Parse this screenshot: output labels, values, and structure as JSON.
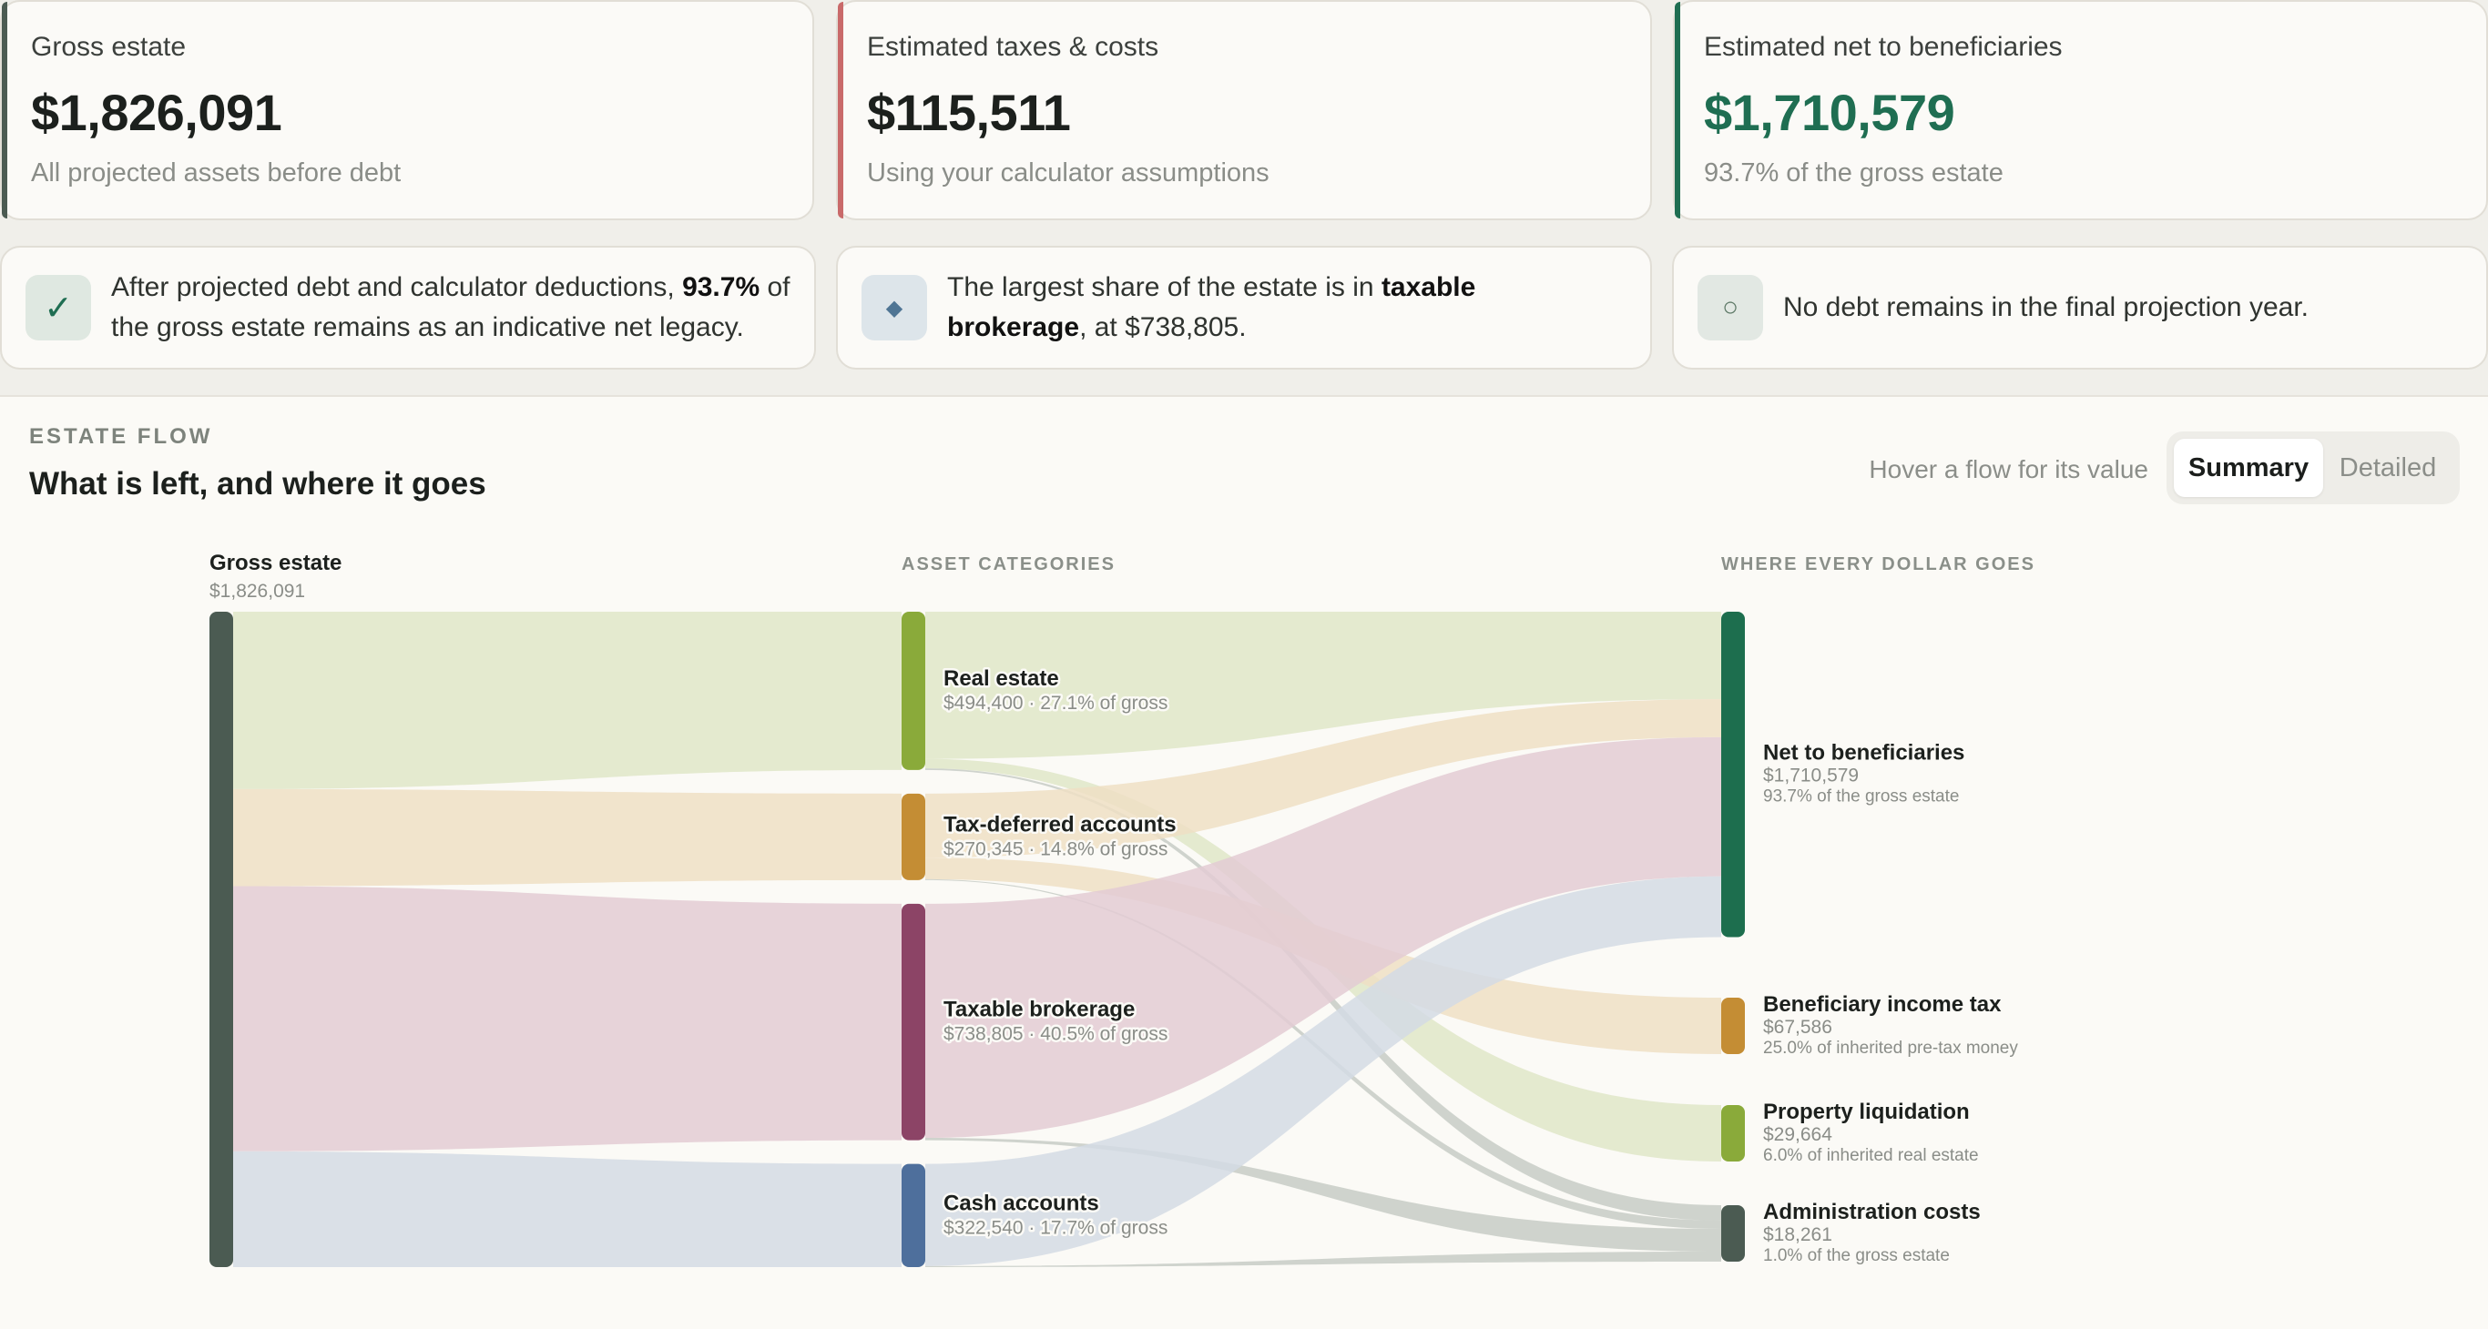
{
  "stats": [
    {
      "label": "Gross estate",
      "value": "$1,826,091",
      "sub": "All projected assets before debt",
      "accent": "#4b5b52"
    },
    {
      "label": "Estimated taxes & costs",
      "value": "$115,511",
      "sub": "Using your calculator assumptions",
      "accent": "#c96a6a"
    },
    {
      "label": "Estimated net to beneficiaries",
      "value": "$1,710,579",
      "sub": "93.7% of the gross estate",
      "accent": "#1f6e52"
    }
  ],
  "insights": [
    {
      "icon": "✓",
      "pre": "After projected debt and calculator deductions, ",
      "bold": "93.7%",
      "post": " of the gross estate remains as an indicative net legacy."
    },
    {
      "icon": "◆",
      "pre": "The largest share of the estate is in ",
      "bold": "taxable brokerage",
      "post": ", at $738,805."
    },
    {
      "icon": "○",
      "pre": "No debt remains in the final projection year.",
      "bold": "",
      "post": ""
    }
  ],
  "panel": {
    "eyebrow": "ESTATE FLOW",
    "title": "What is left, and where it goes",
    "hint": "Hover a flow for its value",
    "toggle": {
      "active": "Summary",
      "inactive": "Detailed"
    }
  },
  "flow": {
    "source": {
      "name": "Gross estate",
      "value": 1826091,
      "value_label": "$1,826,091",
      "color": "#4b5b52"
    },
    "headers": {
      "categories": "ASSET CATEGORIES",
      "destinations": "WHERE EVERY DOLLAR GOES"
    },
    "categories": [
      {
        "id": "real",
        "name": "Real estate",
        "value": 494400,
        "detail": "$494,400 · 27.1% of gross",
        "color": "#8aaa3a",
        "band": "#dfe6c8"
      },
      {
        "id": "taxdef",
        "name": "Tax-deferred accounts",
        "value": 270345,
        "detail": "$270,345 · 14.8% of gross",
        "color": "#c48d34",
        "band": "#eedfc4"
      },
      {
        "id": "brok",
        "name": "Taxable brokerage",
        "value": 738805,
        "detail": "$738,805 · 40.5% of gross",
        "color": "#8c4466",
        "band": "#e3cbd3"
      },
      {
        "id": "cash",
        "name": "Cash accounts",
        "value": 322540,
        "detail": "$322,540 · 17.7% of gross",
        "color": "#4e6f9c",
        "band": "#d3dbe4"
      }
    ],
    "destinations": [
      {
        "id": "net",
        "name": "Net to beneficiaries",
        "value": 1710579,
        "value_label": "$1,710,579",
        "note": "93.7% of the gross estate",
        "color": "#1d6e4e"
      },
      {
        "id": "bit",
        "name": "Beneficiary income tax",
        "value": 67586,
        "value_label": "$67,586",
        "note": "25.0% of inherited pre-tax money",
        "color": "#c48d34"
      },
      {
        "id": "liq",
        "name": "Property liquidation",
        "value": 29664,
        "value_label": "$29,664",
        "note": "6.0% of inherited real estate",
        "color": "#8aaa3a"
      },
      {
        "id": "admin",
        "name": "Administration costs",
        "value": 18261,
        "value_label": "$18,261",
        "note": "1.0% of the gross estate",
        "color": "#4b5b52"
      }
    ],
    "links": [
      {
        "from": "real",
        "to": "net",
        "value": 459792
      },
      {
        "from": "real",
        "to": "liq",
        "value": 29664
      },
      {
        "from": "real",
        "to": "admin",
        "value": 4944
      },
      {
        "from": "taxdef",
        "to": "net",
        "value": 200056
      },
      {
        "from": "taxdef",
        "to": "bit",
        "value": 67586
      },
      {
        "from": "taxdef",
        "to": "admin",
        "value": 2703
      },
      {
        "from": "brok",
        "to": "net",
        "value": 731417
      },
      {
        "from": "brok",
        "to": "admin",
        "value": 7388
      },
      {
        "from": "cash",
        "to": "net",
        "value": 319314
      },
      {
        "from": "cash",
        "to": "admin",
        "value": 3226
      }
    ]
  }
}
